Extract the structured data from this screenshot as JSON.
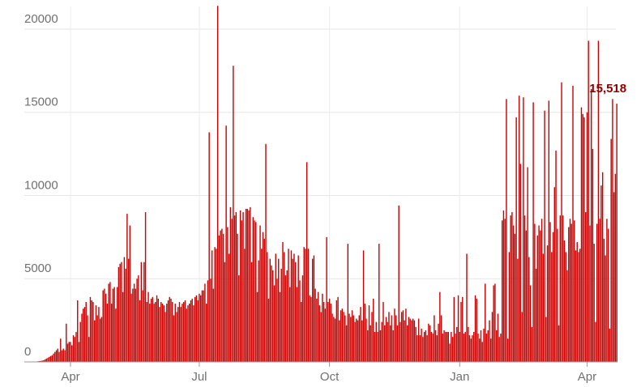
{
  "chart_data": {
    "type": "bar",
    "color": "#c70000",
    "grid": true,
    "annotation": "15,518",
    "ylim": [
      0,
      21750
    ],
    "yticks": [
      0,
      5000,
      10000,
      15000,
      20000
    ],
    "categories": [
      null,
      null,
      null,
      null,
      null,
      null,
      null,
      null,
      null,
      null,
      null,
      null,
      null,
      null,
      null,
      null,
      null,
      null,
      null,
      null,
      null,
      null,
      null,
      null,
      null,
      null,
      null,
      null,
      null,
      null,
      null,
      "Apr",
      null,
      null,
      null,
      null,
      null,
      null,
      null,
      null,
      null,
      null,
      null,
      null,
      null,
      null,
      null,
      null,
      null,
      null,
      null,
      null,
      null,
      null,
      null,
      null,
      null,
      null,
      null,
      null,
      null,
      null,
      null,
      null,
      null,
      null,
      null,
      null,
      null,
      null,
      null,
      null,
      null,
      null,
      null,
      null,
      null,
      null,
      null,
      null,
      null,
      null,
      null,
      null,
      null,
      null,
      null,
      null,
      null,
      null,
      null,
      null,
      null,
      null,
      null,
      null,
      null,
      null,
      null,
      null,
      null,
      null,
      null,
      null,
      null,
      null,
      null,
      null,
      null,
      null,
      null,
      null,
      null,
      null,
      null,
      null,
      null,
      null,
      null,
      null,
      null,
      null,
      "Jul",
      null,
      null,
      null,
      null,
      null,
      null,
      null,
      null,
      null,
      null,
      null,
      null,
      null,
      null,
      null,
      null,
      null,
      null,
      null,
      null,
      null,
      null,
      null,
      null,
      null,
      null,
      null,
      null,
      null,
      null,
      null,
      null,
      null,
      null,
      null,
      null,
      null,
      null,
      null,
      null,
      null,
      null,
      null,
      null,
      null,
      null,
      null,
      null,
      null,
      null,
      null,
      null,
      null,
      null,
      null,
      null,
      null,
      null,
      null,
      null,
      null,
      null,
      null,
      null,
      null,
      null,
      null,
      null,
      null,
      null,
      null,
      null,
      null,
      null,
      null,
      null,
      null,
      null,
      null,
      null,
      null,
      null,
      null,
      null,
      null,
      null,
      null,
      null,
      null,
      null,
      null,
      "Oct",
      null,
      null,
      null,
      null,
      null,
      null,
      null,
      null,
      null,
      null,
      null,
      null,
      null,
      null,
      null,
      null,
      null,
      null,
      null,
      null,
      null,
      null,
      null,
      null,
      null,
      null,
      null,
      null,
      null,
      null,
      null,
      null,
      null,
      null,
      null,
      null,
      null,
      null,
      null,
      null,
      null,
      null,
      null,
      null,
      null,
      null,
      null,
      null,
      null,
      null,
      null,
      null,
      null,
      null,
      null,
      null,
      null,
      null,
      null,
      null,
      null,
      null,
      null,
      null,
      null,
      null,
      null,
      null,
      null,
      null,
      null,
      null,
      null,
      null,
      null,
      null,
      null,
      null,
      null,
      null,
      null,
      null,
      null,
      null,
      null,
      null,
      null,
      null,
      null,
      null,
      null,
      "Jan",
      null,
      null,
      null,
      null,
      null,
      null,
      null,
      null,
      null,
      null,
      null,
      null,
      null,
      null,
      null,
      null,
      null,
      null,
      null,
      null,
      null,
      null,
      null,
      null,
      null,
      null,
      null,
      null,
      null,
      null,
      null,
      null,
      null,
      null,
      null,
      null,
      null,
      null,
      null,
      null,
      null,
      null,
      null,
      null,
      null,
      null,
      null,
      null,
      null,
      null,
      null,
      null,
      null,
      null,
      null,
      null,
      null,
      null,
      null,
      null,
      null,
      null,
      null,
      null,
      null,
      null,
      null,
      null,
      null,
      null,
      null,
      null,
      null,
      null,
      null,
      null,
      null,
      null,
      null,
      null,
      null,
      null,
      null,
      null,
      null,
      null,
      null,
      null,
      null,
      "Apr",
      null,
      null,
      null,
      null,
      null,
      null,
      null,
      null,
      null,
      null,
      null,
      null,
      null,
      null,
      null,
      null,
      null,
      null,
      null,
      null,
      null
    ],
    "values": [
      0,
      0,
      0,
      0,
      0,
      10,
      20,
      20,
      40,
      50,
      60,
      80,
      100,
      150,
      200,
      250,
      300,
      350,
      400,
      500,
      600,
      700,
      800,
      600,
      1400,
      700,
      800,
      700,
      2300,
      1100,
      1200,
      1200,
      1000,
      1600,
      1500,
      1800,
      3700,
      1200,
      2400,
      2900,
      3200,
      3300,
      3600,
      2800,
      1500,
      3900,
      3700,
      3600,
      2500,
      3400,
      2800,
      3300,
      2600,
      2700,
      4300,
      4400,
      4100,
      3500,
      4700,
      4800,
      3500,
      4400,
      4500,
      3200,
      4500,
      5700,
      5900,
      6000,
      4200,
      6300,
      5600,
      8900,
      6200,
      8200,
      4100,
      4400,
      4700,
      4400,
      5000,
      5200,
      3700,
      6000,
      4300,
      6000,
      9000,
      3600,
      4200,
      3500,
      3800,
      3900,
      3500,
      3600,
      4000,
      3800,
      3300,
      3600,
      3500,
      3400,
      3000,
      3500,
      3700,
      3900,
      3800,
      3600,
      2800,
      3500,
      3000,
      3300,
      3600,
      3300,
      3500,
      3600,
      3700,
      3200,
      3400,
      3500,
      3700,
      3800,
      3400,
      3900,
      4000,
      3700,
      4100,
      4000,
      4300,
      4300,
      4700,
      3500,
      4900,
      13800,
      5000,
      6700,
      4400,
      6900,
      6800,
      21400,
      7600,
      7900,
      8000,
      7700,
      6000,
      14200,
      8100,
      6500,
      9300,
      8600,
      17800,
      8800,
      9000,
      7700,
      5200,
      9100,
      8500,
      9000,
      6800,
      9200,
      9200,
      9100,
      9300,
      6000,
      8700,
      8500,
      8400,
      4200,
      6100,
      8200,
      6800,
      7800,
      7400,
      13100,
      6600,
      3800,
      6200,
      5800,
      5500,
      4600,
      6500,
      5000,
      6200,
      4200,
      5600,
      7200,
      6600,
      5200,
      5500,
      6800,
      4500,
      6700,
      6200,
      6500,
      6000,
      4500,
      6400,
      4900,
      3600,
      5200,
      6900,
      6800,
      12000,
      6800,
      4000,
      3900,
      6200,
      6400,
      4400,
      3800,
      4200,
      3400,
      3000,
      4100,
      3600,
      3200,
      7500,
      3600,
      3800,
      3500,
      2900,
      2700,
      2600,
      3700,
      3900,
      2500,
      3100,
      3200,
      3000,
      2800,
      2200,
      7100,
      2900,
      2700,
      3100,
      2800,
      2400,
      2600,
      2500,
      2800,
      3300,
      2500,
      6700,
      3500,
      2600,
      1900,
      3400,
      2200,
      3000,
      3800,
      1800,
      2400,
      1800,
      7100,
      1900,
      2400,
      3600,
      2200,
      2700,
      2400,
      3000,
      2200,
      2800,
      1900,
      3200,
      2800,
      2200,
      9400,
      2400,
      3000,
      3100,
      2500,
      3200,
      2200,
      2700,
      2600,
      2500,
      2600,
      2500,
      2100,
      1600,
      2600,
      1600,
      2000,
      1500,
      1800,
      1900,
      1600,
      2300,
      2200,
      1800,
      1700,
      2800,
      1900,
      1600,
      2300,
      4200,
      2800,
      1700,
      1900,
      1800,
      1800,
      1800,
      1100,
      1800,
      1500,
      3900,
      1700,
      2100,
      4000,
      1800,
      3600,
      3900,
      1700,
      1800,
      6500,
      2100,
      1600,
      1400,
      1600,
      1800,
      4000,
      3800,
      1700,
      1400,
      1900,
      1200,
      2000,
      4700,
      1700,
      1900,
      2500,
      1400,
      3000,
      4600,
      4700,
      1900,
      2900,
      1500,
      1700,
      8500,
      9100,
      8600,
      15800,
      1400,
      6600,
      8800,
      9000,
      8200,
      7700,
      14700,
      6200,
      16000,
      11900,
      3000,
      15900,
      8800,
      7900,
      11700,
      6300,
      4600,
      2100,
      15600,
      8300,
      5600,
      7600,
      8200,
      7900,
      8600,
      6500,
      15100,
      2700,
      7000,
      15700,
      8400,
      6600,
      7800,
      10500,
      12700,
      8000,
      2200,
      8800,
      16800,
      8800,
      7300,
      6600,
      5500,
      8100,
      8600,
      8300,
      16600,
      8500,
      6700,
      7200,
      6600,
      6800,
      15300,
      14900,
      14700,
      9000,
      15000,
      19300,
      8200,
      16400,
      12800,
      7100,
      2400,
      8300,
      19300,
      8600,
      10600,
      11400,
      7400,
      6400,
      8600,
      8000,
      2000,
      13400,
      15800,
      10200,
      11300,
      15518
    ]
  }
}
